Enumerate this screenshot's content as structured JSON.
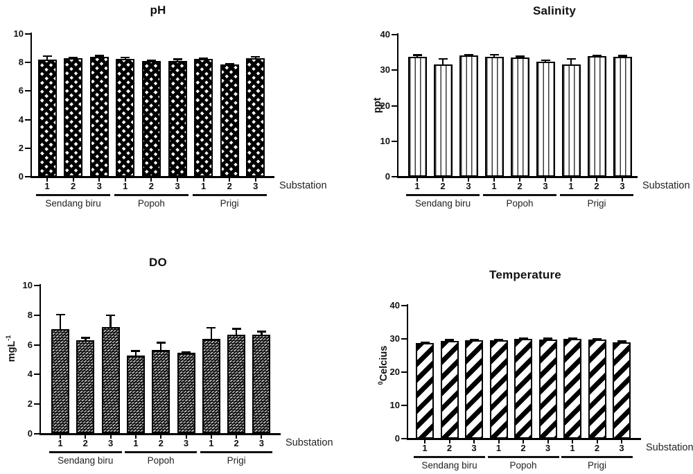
{
  "figure": {
    "background": "#ffffff",
    "axis_color": "#000000",
    "text_color": "#1a1a1a",
    "bar_outline_color": "#000000",
    "dark_fill": "#262626"
  },
  "chart_data": [
    {
      "id": "ph",
      "type": "bar",
      "title": "pH",
      "ylabel_parts": [],
      "ymax": 10,
      "yticks": [
        0,
        2,
        4,
        6,
        8,
        10
      ],
      "xlabel": "Substation",
      "groups": [
        "Sendang biru",
        "Popoh",
        "Prigi"
      ],
      "x_tick_labels": [
        "1",
        "2",
        "3",
        "1",
        "2",
        "3",
        "1",
        "2",
        "3"
      ],
      "pattern": "diamond-lattice",
      "values": [
        8.2,
        8.3,
        8.4,
        8.25,
        8.1,
        8.1,
        8.25,
        7.85,
        8.3
      ],
      "errors": [
        0.25,
        0.07,
        0.03,
        0.12,
        0.07,
        0.15,
        0.06,
        0.06,
        0.12
      ]
    },
    {
      "id": "salinity",
      "type": "bar",
      "title": "Salinity",
      "ylabel_parts": [
        {
          "t": "ppt",
          "sup": false
        }
      ],
      "ymax": 40,
      "yticks": [
        0,
        10,
        20,
        30,
        40
      ],
      "xlabel": "Substation",
      "groups": [
        "Sendang biru",
        "Popoh",
        "Prigi"
      ],
      "x_tick_labels": [
        "1",
        "2",
        "3",
        "1",
        "2",
        "3",
        "1",
        "2",
        "3"
      ],
      "pattern": "vertical-lines",
      "values": [
        33.8,
        31.7,
        34.1,
        33.8,
        33.6,
        32.4,
        31.6,
        33.9,
        33.8
      ],
      "errors": [
        0.5,
        1.5,
        0.1,
        0.6,
        0.2,
        0.4,
        1.6,
        0.3,
        0.2
      ]
    },
    {
      "id": "do",
      "type": "bar",
      "title": "DO",
      "ylabel_parts": [
        {
          "t": "mgL",
          "sup": false
        },
        {
          "t": "-1",
          "sup": true
        }
      ],
      "ymax": 10,
      "yticks": [
        0,
        2,
        4,
        6,
        8,
        10
      ],
      "xlabel": "Substation",
      "groups": [
        "Sendang biru",
        "Popoh",
        "Prigi"
      ],
      "x_tick_labels": [
        "1",
        "2",
        "3",
        "1",
        "2",
        "3",
        "1",
        "2",
        "3"
      ],
      "pattern": "fine-weave",
      "values": [
        7.05,
        6.3,
        7.2,
        5.3,
        5.65,
        5.45,
        6.4,
        6.7,
        6.7
      ],
      "errors": [
        1.0,
        0.18,
        0.8,
        0.3,
        0.5,
        0.05,
        0.75,
        0.4,
        0.2
      ]
    },
    {
      "id": "temperature",
      "type": "bar",
      "title": "Temperature",
      "ylabel_parts": [
        {
          "t": "0",
          "sup": true
        },
        {
          "t": "Celcius",
          "sup": false
        }
      ],
      "ymax": 40,
      "yticks": [
        0,
        10,
        20,
        30,
        40
      ],
      "xlabel": "Substation",
      "groups": [
        "Sendang biru",
        "Popoh",
        "Prigi"
      ],
      "x_tick_labels": [
        "1",
        "2",
        "3",
        "1",
        "2",
        "3",
        "1",
        "2",
        "3"
      ],
      "pattern": "diagonal-stripes",
      "values": [
        28.7,
        29.4,
        29.5,
        29.5,
        29.9,
        29.8,
        29.9,
        29.7,
        29.0
      ],
      "errors": [
        0.25,
        0.25,
        0.25,
        0.3,
        0.25,
        0.25,
        0.3,
        0.25,
        0.25
      ]
    }
  ]
}
